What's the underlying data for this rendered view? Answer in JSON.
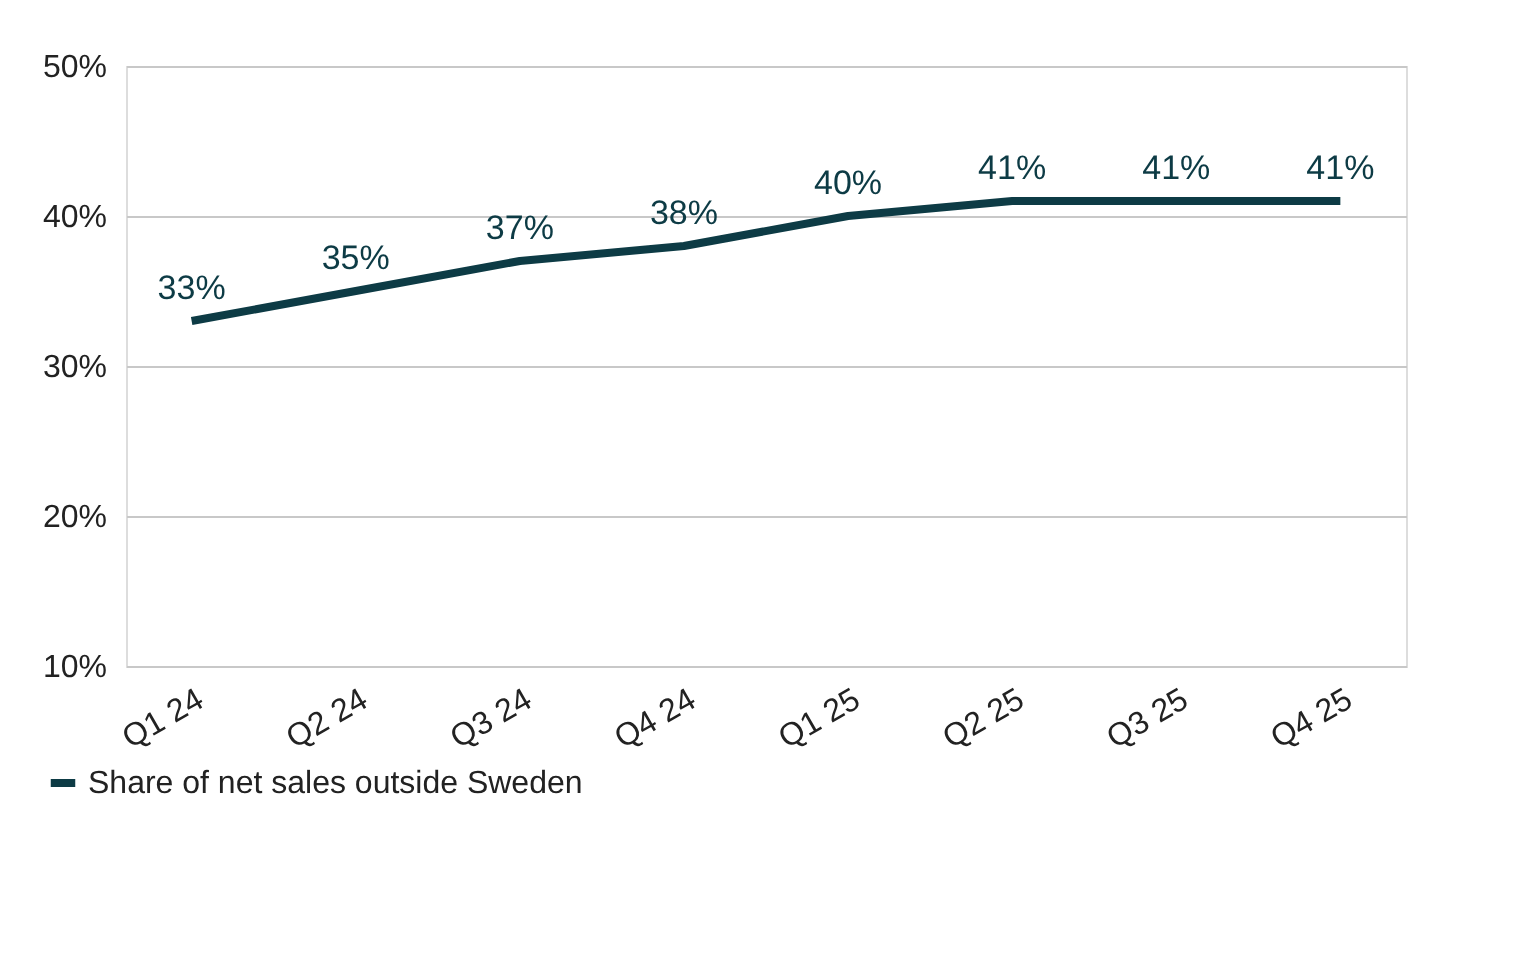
{
  "chart_data": {
    "type": "line",
    "categories": [
      "Q1 24",
      "Q2 24",
      "Q3 24",
      "Q4 24",
      "Q1 25",
      "Q2 25",
      "Q3 25",
      "Q4 25"
    ],
    "series": [
      {
        "name": "Share of net sales outside Sweden",
        "color": "#0d3b45",
        "values": [
          33,
          35,
          37,
          38,
          40,
          41,
          41,
          41
        ],
        "value_labels": [
          "33%",
          "35%",
          "37%",
          "38%",
          "40%",
          "41%",
          "41%",
          "41%"
        ]
      }
    ],
    "ylim": [
      10,
      50
    ],
    "yticks": [
      {
        "value": 10,
        "label": "10%"
      },
      {
        "value": 20,
        "label": "20%"
      },
      {
        "value": 30,
        "label": "30%"
      },
      {
        "value": 40,
        "label": "40%"
      },
      {
        "value": 50,
        "label": "50%"
      }
    ],
    "grid": "y",
    "legend": "bottom left",
    "marker": "none",
    "line_style": "solid"
  }
}
